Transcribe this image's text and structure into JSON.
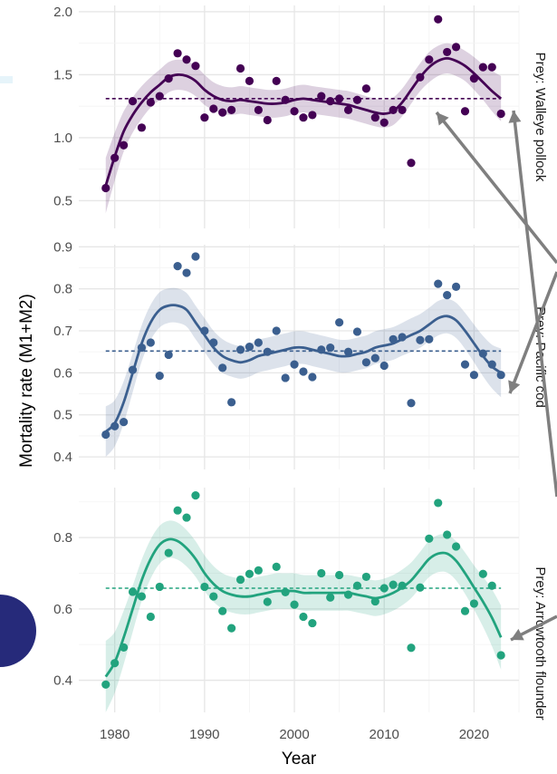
{
  "chart_data": {
    "type": "scatter",
    "xlabel": "Year",
    "ylabel": "Mortality rate (M1+M2)",
    "xlim": [
      1976,
      2025
    ],
    "x_ticks": [
      1980,
      1990,
      2000,
      2010,
      2020
    ],
    "grid": true,
    "years": [
      1979,
      1980,
      1981,
      1982,
      1983,
      1984,
      1985,
      1986,
      1987,
      1988,
      1989,
      1990,
      1991,
      1992,
      1993,
      1994,
      1995,
      1996,
      1997,
      1998,
      1999,
      2000,
      2001,
      2002,
      2003,
      2004,
      2005,
      2006,
      2007,
      2008,
      2009,
      2010,
      2011,
      2012,
      2013,
      2014,
      2015,
      2016,
      2017,
      2018,
      2019,
      2020,
      2021,
      2022,
      2023
    ],
    "panels": [
      {
        "strip_label": "Prey: Walleye pollock",
        "color": "#440154",
        "ylim": [
          0.28,
          2.05
        ],
        "y_ticks": [
          0.5,
          1.0,
          1.5,
          2.0
        ],
        "y_tick_labels": [
          "0.5",
          "1.0",
          "1.5",
          "2.0"
        ],
        "mean": 1.31,
        "points": [
          0.6,
          0.84,
          0.94,
          1.29,
          1.08,
          1.28,
          1.33,
          1.47,
          1.67,
          1.62,
          1.57,
          1.16,
          1.23,
          1.2,
          1.22,
          1.55,
          1.45,
          1.22,
          1.14,
          1.45,
          1.3,
          1.21,
          1.16,
          1.18,
          1.33,
          1.29,
          1.31,
          1.22,
          1.3,
          1.39,
          1.16,
          1.12,
          1.22,
          1.22,
          0.8,
          1.48,
          1.62,
          1.94,
          1.68,
          1.72,
          1.21,
          1.47,
          1.56,
          1.56,
          1.19
        ],
        "fit": [
          0.62,
          0.85,
          1.05,
          1.18,
          1.28,
          1.36,
          1.42,
          1.48,
          1.5,
          1.49,
          1.45,
          1.38,
          1.33,
          1.3,
          1.29,
          1.3,
          1.29,
          1.28,
          1.27,
          1.27,
          1.28,
          1.3,
          1.31,
          1.3,
          1.29,
          1.28,
          1.27,
          1.26,
          1.24,
          1.22,
          1.2,
          1.19,
          1.21,
          1.28,
          1.38,
          1.48,
          1.56,
          1.61,
          1.63,
          1.61,
          1.57,
          1.51,
          1.44,
          1.37,
          1.31
        ],
        "band_half": [
          0.22,
          0.19,
          0.16,
          0.14,
          0.13,
          0.12,
          0.12,
          0.12,
          0.12,
          0.12,
          0.12,
          0.12,
          0.11,
          0.11,
          0.11,
          0.11,
          0.11,
          0.11,
          0.11,
          0.11,
          0.11,
          0.11,
          0.11,
          0.11,
          0.11,
          0.11,
          0.11,
          0.11,
          0.11,
          0.11,
          0.11,
          0.11,
          0.11,
          0.11,
          0.11,
          0.11,
          0.12,
          0.12,
          0.12,
          0.12,
          0.12,
          0.13,
          0.14,
          0.16,
          0.18
        ]
      },
      {
        "strip_label": "Prey: Pacific cod",
        "color": "#3b5f8f",
        "ylim": [
          0.37,
          0.905
        ],
        "y_ticks": [
          0.4,
          0.5,
          0.6,
          0.7,
          0.8,
          0.9
        ],
        "y_tick_labels": [
          "0.4",
          "0.5",
          "0.6",
          "0.7",
          "0.8",
          "0.9"
        ],
        "mean": 0.652,
        "points": [
          0.453,
          0.473,
          0.483,
          0.607,
          0.66,
          0.672,
          0.593,
          0.643,
          0.854,
          0.838,
          0.877,
          0.7,
          0.672,
          0.612,
          0.53,
          0.655,
          0.662,
          0.672,
          0.65,
          0.7,
          0.588,
          0.62,
          0.603,
          0.59,
          0.655,
          0.66,
          0.72,
          0.65,
          0.698,
          0.625,
          0.635,
          0.617,
          0.68,
          0.685,
          0.528,
          0.678,
          0.68,
          0.812,
          0.785,
          0.805,
          0.62,
          0.595,
          0.646,
          0.62,
          0.595
        ],
        "fit": [
          0.46,
          0.48,
          0.53,
          0.6,
          0.67,
          0.72,
          0.75,
          0.76,
          0.76,
          0.75,
          0.72,
          0.69,
          0.66,
          0.64,
          0.63,
          0.625,
          0.63,
          0.64,
          0.645,
          0.65,
          0.655,
          0.66,
          0.66,
          0.655,
          0.65,
          0.645,
          0.64,
          0.64,
          0.645,
          0.65,
          0.66,
          0.665,
          0.67,
          0.68,
          0.69,
          0.7,
          0.715,
          0.73,
          0.735,
          0.725,
          0.7,
          0.67,
          0.64,
          0.615,
          0.6
        ],
        "band_half": [
          0.06,
          0.055,
          0.05,
          0.046,
          0.043,
          0.042,
          0.042,
          0.041,
          0.041,
          0.04,
          0.04,
          0.04,
          0.04,
          0.04,
          0.039,
          0.039,
          0.039,
          0.039,
          0.039,
          0.039,
          0.039,
          0.039,
          0.039,
          0.039,
          0.039,
          0.039,
          0.039,
          0.039,
          0.039,
          0.039,
          0.039,
          0.039,
          0.039,
          0.039,
          0.04,
          0.04,
          0.04,
          0.041,
          0.041,
          0.042,
          0.043,
          0.045,
          0.048,
          0.052,
          0.058
        ]
      },
      {
        "strip_label": "Prey: Arrowtooth flounder",
        "color": "#22a37e",
        "ylim": [
          0.31,
          0.94
        ],
        "y_ticks": [
          0.4,
          0.6,
          0.8
        ],
        "y_tick_labels": [
          "0.4",
          "0.6",
          "0.8"
        ],
        "mean": 0.658,
        "points": [
          0.388,
          0.448,
          0.492,
          0.648,
          0.635,
          0.578,
          0.662,
          0.757,
          0.876,
          0.856,
          0.918,
          0.662,
          0.635,
          0.594,
          0.546,
          0.682,
          0.698,
          0.708,
          0.62,
          0.718,
          0.647,
          0.612,
          0.578,
          0.56,
          0.7,
          0.632,
          0.695,
          0.64,
          0.665,
          0.69,
          0.621,
          0.658,
          0.668,
          0.665,
          0.491,
          0.66,
          0.797,
          0.897,
          0.808,
          0.775,
          0.594,
          0.615,
          0.698,
          0.665,
          0.47
        ],
        "fit": [
          0.41,
          0.45,
          0.52,
          0.6,
          0.68,
          0.74,
          0.78,
          0.795,
          0.79,
          0.77,
          0.74,
          0.7,
          0.67,
          0.65,
          0.64,
          0.635,
          0.635,
          0.64,
          0.645,
          0.65,
          0.65,
          0.65,
          0.645,
          0.645,
          0.645,
          0.645,
          0.645,
          0.645,
          0.64,
          0.635,
          0.63,
          0.635,
          0.645,
          0.66,
          0.68,
          0.71,
          0.74,
          0.755,
          0.755,
          0.735,
          0.7,
          0.66,
          0.62,
          0.575,
          0.52
        ],
        "band_half": [
          0.1,
          0.085,
          0.075,
          0.065,
          0.058,
          0.055,
          0.053,
          0.052,
          0.052,
          0.051,
          0.05,
          0.05,
          0.05,
          0.05,
          0.05,
          0.05,
          0.05,
          0.05,
          0.05,
          0.05,
          0.05,
          0.05,
          0.05,
          0.05,
          0.05,
          0.05,
          0.05,
          0.05,
          0.05,
          0.05,
          0.05,
          0.05,
          0.05,
          0.05,
          0.05,
          0.05,
          0.051,
          0.052,
          0.053,
          0.055,
          0.058,
          0.062,
          0.07,
          0.08,
          0.09
        ]
      }
    ]
  }
}
